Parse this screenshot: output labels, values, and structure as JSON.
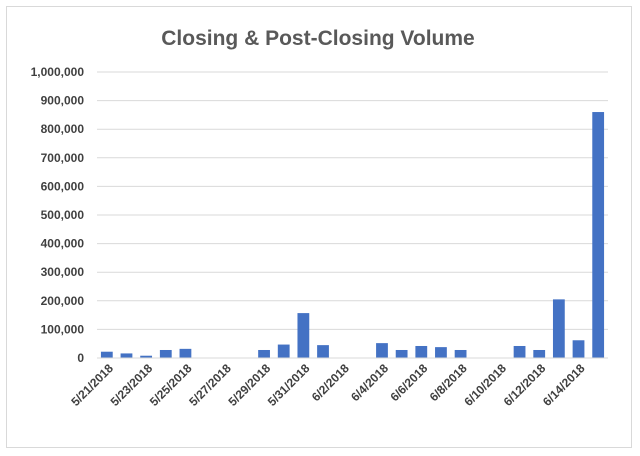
{
  "chart_data": {
    "type": "bar",
    "title": "Closing & Post-Closing Volume",
    "xlabel": "",
    "ylabel": "",
    "ylim": [
      0,
      1000000
    ],
    "yticks": [
      "0",
      "100,000",
      "200,000",
      "300,000",
      "400,000",
      "500,000",
      "600,000",
      "700,000",
      "800,000",
      "900,000",
      "1,000,000"
    ],
    "grid": true,
    "legend": "none",
    "bar_color": "#4472c4",
    "categories": [
      "5/21/2018",
      "5/22/2018",
      "5/23/2018",
      "5/24/2018",
      "5/25/2018",
      "5/26/2018",
      "5/27/2018",
      "5/28/2018",
      "5/29/2018",
      "5/30/2018",
      "5/31/2018",
      "6/1/2018",
      "6/2/2018",
      "6/3/2018",
      "6/4/2018",
      "6/5/2018",
      "6/6/2018",
      "6/7/2018",
      "6/8/2018",
      "6/9/2018",
      "6/10/2018",
      "6/11/2018",
      "6/12/2018",
      "6/13/2018",
      "6/14/2018",
      "6/15/2018"
    ],
    "xtick_labels": [
      "5/21/2018",
      "5/23/2018",
      "5/25/2018",
      "5/27/2018",
      "5/29/2018",
      "5/31/2018",
      "6/2/2018",
      "6/4/2018",
      "6/6/2018",
      "6/8/2018",
      "6/10/2018",
      "6/12/2018",
      "6/14/2018"
    ],
    "values": [
      22000,
      16000,
      8000,
      28000,
      32000,
      0,
      0,
      0,
      28000,
      47000,
      157000,
      45000,
      0,
      0,
      52000,
      28000,
      42000,
      38000,
      28000,
      0,
      0,
      42000,
      28000,
      205000,
      62000,
      860000
    ]
  }
}
